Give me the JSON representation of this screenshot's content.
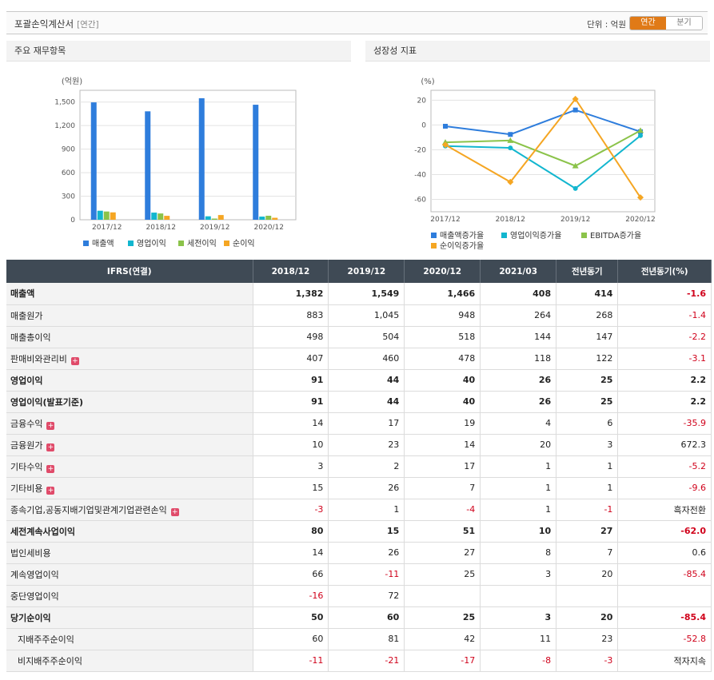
{
  "header": {
    "title": "포괄손익계산서",
    "subtitle": "[연간]",
    "unit": "단위 : 억원",
    "tab_annual": "연간",
    "tab_quarter": "분기"
  },
  "panels": {
    "left_title": "주요 재무항목",
    "right_title": "성장성 지표"
  },
  "chart_data": [
    {
      "type": "bar",
      "title": "주요 재무항목",
      "ylabel": "(억원)",
      "ylim": [
        0,
        1650
      ],
      "yticks": [
        "0",
        "300",
        "600",
        "900",
        "1,200",
        "1,500"
      ],
      "categories": [
        "2017/12",
        "2018/12",
        "2019/12",
        "2020/12"
      ],
      "series": [
        {
          "name": "매출액",
          "color": "#2e7ddc",
          "values": [
            1496,
            1382,
            1549,
            1466
          ]
        },
        {
          "name": "영업이익",
          "color": "#12b6cf",
          "values": [
            115,
            91,
            44,
            40
          ]
        },
        {
          "name": "세전이익",
          "color": "#8bc34a",
          "values": [
            105,
            80,
            15,
            51
          ]
        },
        {
          "name": "순이익",
          "color": "#f5a623",
          "values": [
            94,
            50,
            60,
            25
          ]
        }
      ],
      "legend": "bottom"
    },
    {
      "type": "line",
      "title": "성장성 지표",
      "ylabel": "(%)",
      "ylim": [
        -70,
        28
      ],
      "yticks": [
        "20",
        "0",
        "-20",
        "-40",
        "-60"
      ],
      "categories": [
        "2017/12",
        "2018/12",
        "2019/12",
        "2020/12"
      ],
      "series": [
        {
          "name": "매출액증가율",
          "color": "#2e7ddc",
          "values": [
            -1,
            -7.6,
            12.1,
            -5.4
          ]
        },
        {
          "name": "영업이익증가율",
          "color": "#12b6cf",
          "values": [
            -17,
            -18.5,
            -51.2,
            -8.6
          ]
        },
        {
          "name": "EBITDA증가율",
          "color": "#8bc34a",
          "values": [
            -14,
            -12.5,
            -33,
            -4.5
          ]
        },
        {
          "name": "순이익증가율",
          "color": "#f5a623",
          "values": [
            -16,
            -46,
            21,
            -58.5
          ]
        }
      ],
      "legend": "bottom"
    }
  ],
  "table": {
    "headers": [
      "IFRS(연결)",
      "2018/12",
      "2019/12",
      "2020/12",
      "2021/03",
      "전년동기",
      "전년동기(%)"
    ],
    "rows": [
      {
        "label": "매출액",
        "bold": true,
        "vals": [
          "1,382",
          "1,549",
          "1,466",
          "408",
          "414",
          "-1.6"
        ],
        "neg": [
          5
        ]
      },
      {
        "label": "매출원가",
        "vals": [
          "883",
          "1,045",
          "948",
          "264",
          "268",
          "-1.4"
        ],
        "neg": [
          5
        ]
      },
      {
        "label": "매출총이익",
        "vals": [
          "498",
          "504",
          "518",
          "144",
          "147",
          "-2.2"
        ],
        "neg": [
          5
        ]
      },
      {
        "label": "판매비와관리비",
        "plus": true,
        "vals": [
          "407",
          "460",
          "478",
          "118",
          "122",
          "-3.1"
        ],
        "neg": [
          5
        ]
      },
      {
        "label": "영업이익",
        "bold": true,
        "vals": [
          "91",
          "44",
          "40",
          "26",
          "25",
          "2.2"
        ],
        "neg": []
      },
      {
        "label": "영업이익(발표기준)",
        "bold": true,
        "vals": [
          "91",
          "44",
          "40",
          "26",
          "25",
          "2.2"
        ],
        "neg": []
      },
      {
        "label": "금융수익",
        "plus": true,
        "vals": [
          "14",
          "17",
          "19",
          "4",
          "6",
          "-35.9"
        ],
        "neg": [
          5
        ]
      },
      {
        "label": "금융원가",
        "plus": true,
        "vals": [
          "10",
          "23",
          "14",
          "20",
          "3",
          "672.3"
        ],
        "neg": []
      },
      {
        "label": "기타수익",
        "plus": true,
        "vals": [
          "3",
          "2",
          "17",
          "1",
          "1",
          "-5.2"
        ],
        "neg": [
          5
        ]
      },
      {
        "label": "기타비용",
        "plus": true,
        "vals": [
          "15",
          "26",
          "7",
          "1",
          "1",
          "-9.6"
        ],
        "neg": [
          5
        ]
      },
      {
        "label": "종속기업,공동지배기업및관계기업관련손익",
        "plus": true,
        "vals": [
          "-3",
          "1",
          "-4",
          "1",
          "-1",
          "흑자전환"
        ],
        "neg": [
          0,
          2,
          4
        ]
      },
      {
        "label": "세전계속사업이익",
        "bold": true,
        "vals": [
          "80",
          "15",
          "51",
          "10",
          "27",
          "-62.0"
        ],
        "neg": [
          5
        ]
      },
      {
        "label": "법인세비용",
        "vals": [
          "14",
          "26",
          "27",
          "8",
          "7",
          "0.6"
        ],
        "neg": []
      },
      {
        "label": "계속영업이익",
        "vals": [
          "66",
          "-11",
          "25",
          "3",
          "20",
          "-85.4"
        ],
        "neg": [
          1,
          5
        ]
      },
      {
        "label": "중단영업이익",
        "vals": [
          "-16",
          "72",
          "",
          "",
          "",
          ""
        ],
        "neg": [
          0
        ]
      },
      {
        "label": "당기순이익",
        "bold": true,
        "vals": [
          "50",
          "60",
          "25",
          "3",
          "20",
          "-85.4"
        ],
        "neg": [
          5
        ]
      },
      {
        "label": "지배주주순이익",
        "indent": true,
        "vals": [
          "60",
          "81",
          "42",
          "11",
          "23",
          "-52.8"
        ],
        "neg": [
          5
        ]
      },
      {
        "label": "비지배주주순이익",
        "indent": true,
        "vals": [
          "-11",
          "-21",
          "-17",
          "-8",
          "-3",
          "적자지속"
        ],
        "neg": [
          0,
          1,
          2,
          3,
          4
        ]
      }
    ]
  }
}
